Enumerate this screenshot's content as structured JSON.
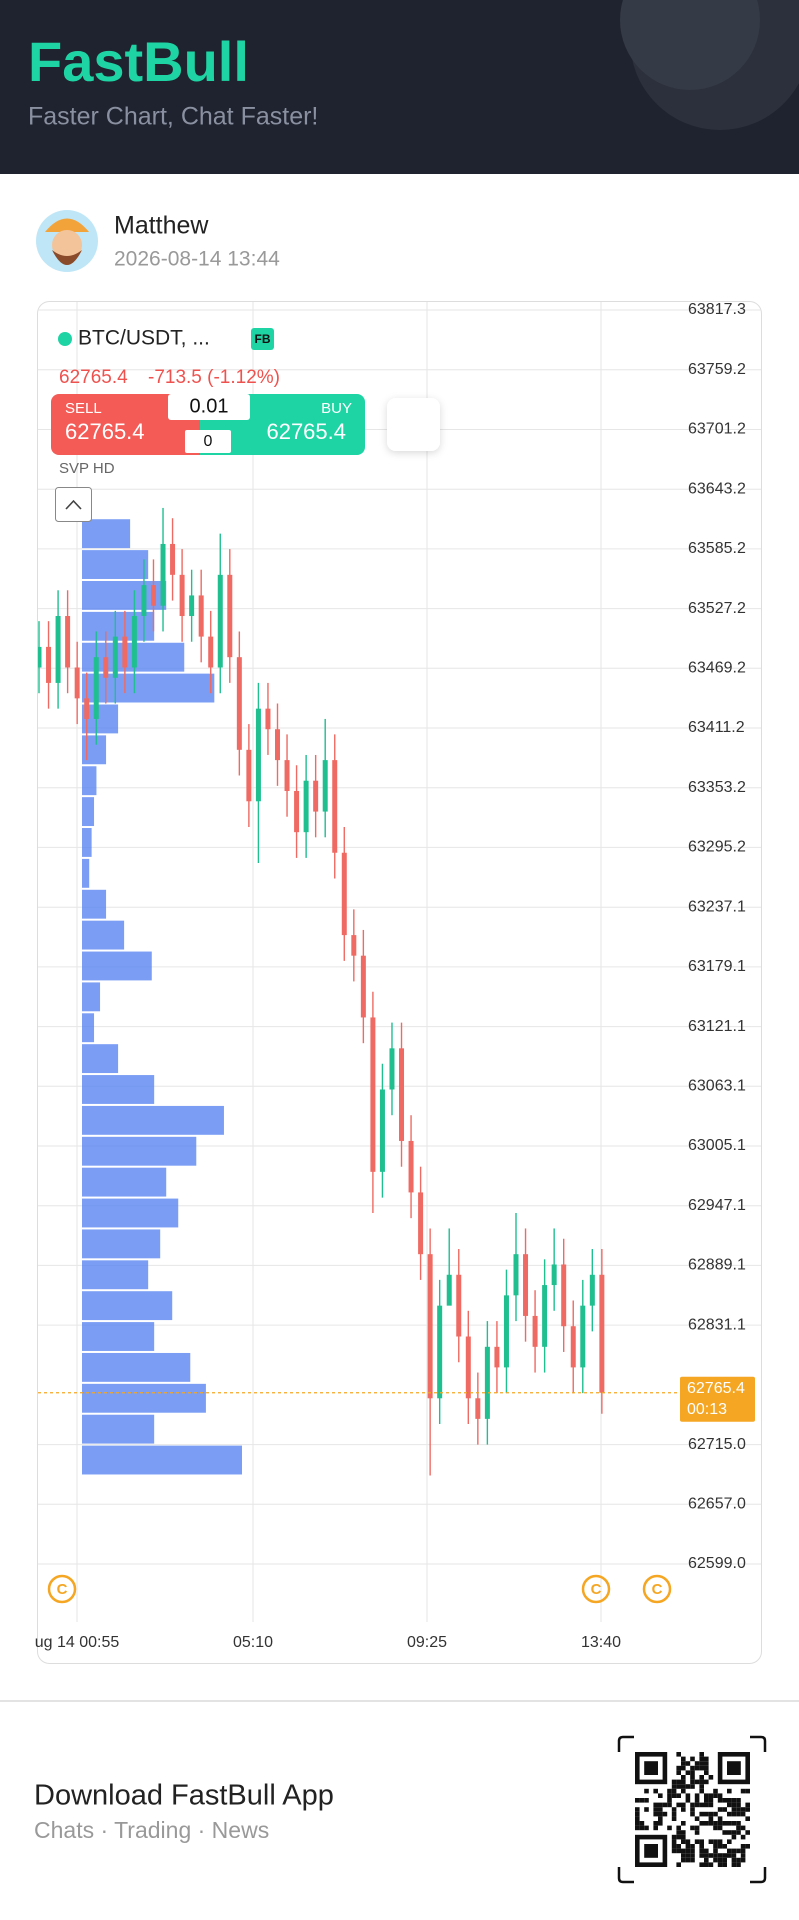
{
  "header": {
    "logo": "FastBull",
    "tagline": "Faster Chart, Chat Faster!"
  },
  "post": {
    "author": "Matthew",
    "timestamp": "2026-08-14 13:44"
  },
  "ticker": {
    "symbol": "BTC/USDT, ...",
    "badge": "FB",
    "price": "62765.4",
    "change": "-713.5 (-1.12%)",
    "study": "SVP HD"
  },
  "trade_panel": {
    "sell_label": "SELL",
    "sell_price": "62765.4",
    "buy_label": "BUY",
    "buy_price": "62765.4",
    "quantity": "0.01",
    "position": "0"
  },
  "chart_data": {
    "type": "candlestick",
    "x_labels": [
      "ug 14 00:55",
      "05:10",
      "09:25",
      "13:40"
    ],
    "open": [
      63470,
      63490,
      63455,
      63520,
      63470,
      63440,
      63420,
      63480,
      63460,
      63500,
      63470,
      63520,
      63550,
      63530,
      63590,
      63560,
      63520,
      63540,
      63500,
      63470,
      63560,
      63480,
      63390,
      63340,
      63430,
      63410,
      63380,
      63350,
      63310,
      63360,
      63330,
      63380,
      63290,
      63210,
      63190,
      63130,
      62980,
      63060,
      63100,
      63010,
      62960,
      62900,
      62760,
      62850,
      62880,
      62820,
      62760,
      62740,
      62810,
      62790,
      62860,
      62900,
      62840,
      62810,
      62870,
      62890,
      62830,
      62790,
      62850,
      62880
    ],
    "high": [
      63515,
      63515,
      63545,
      63545,
      63495,
      63465,
      63505,
      63505,
      63525,
      63525,
      63545,
      63575,
      63575,
      63625,
      63615,
      63585,
      63565,
      63565,
      63525,
      63600,
      63585,
      63505,
      63415,
      63455,
      63455,
      63435,
      63405,
      63375,
      63385,
      63385,
      63420,
      63405,
      63315,
      63235,
      63215,
      63155,
      63085,
      63125,
      63125,
      63035,
      62985,
      62925,
      62875,
      62925,
      62905,
      62845,
      62785,
      62835,
      62835,
      62885,
      62940,
      62925,
      62865,
      62895,
      62925,
      62915,
      62855,
      62875,
      62905,
      62905
    ],
    "low": [
      63445,
      63430,
      63430,
      63445,
      63415,
      63380,
      63395,
      63435,
      63435,
      63445,
      63445,
      63495,
      63505,
      63505,
      63535,
      63495,
      63495,
      63475,
      63445,
      63445,
      63455,
      63365,
      63315,
      63280,
      63385,
      63355,
      63325,
      63285,
      63285,
      63305,
      63305,
      63265,
      63185,
      63165,
      63105,
      62940,
      62955,
      63035,
      62985,
      62935,
      62875,
      62685,
      62735,
      62855,
      62795,
      62735,
      62715,
      62715,
      62765,
      62765,
      62835,
      62815,
      62785,
      62785,
      62845,
      62805,
      62765,
      62765,
      62825,
      62745
    ],
    "close": [
      63490,
      63455,
      63520,
      63470,
      63440,
      63420,
      63480,
      63460,
      63500,
      63470,
      63520,
      63550,
      63530,
      63590,
      63560,
      63520,
      63540,
      63500,
      63470,
      63560,
      63480,
      63390,
      63340,
      63430,
      63410,
      63380,
      63350,
      63310,
      63360,
      63330,
      63380,
      63290,
      63210,
      63190,
      63130,
      62980,
      63060,
      63100,
      63010,
      62960,
      62900,
      62760,
      62850,
      62880,
      62820,
      62760,
      62740,
      62810,
      62790,
      62860,
      62900,
      62840,
      62810,
      62870,
      62890,
      62830,
      62790,
      62850,
      62880,
      62765.4
    ],
    "up_color": "#1fbf90",
    "down_color": "#ef6a63",
    "ylim": [
      62599.0,
      63817.3
    ],
    "yticks": [
      63817.3,
      63759.2,
      63701.2,
      63643.2,
      63585.2,
      63527.2,
      63469.2,
      63411.2,
      63353.2,
      63295.2,
      63237.1,
      63179.1,
      63121.1,
      63063.1,
      63005.1,
      62947.1,
      62889.1,
      62831.1,
      {
        "value": 62715.0,
        "label": "62715.0"
      },
      {
        "value": 62657.0,
        "label": "62657.0"
      },
      {
        "value": 62599.0,
        "label": "62599.0"
      }
    ],
    "grid": true,
    "last_price": 62765.4,
    "countdown": "00:13",
    "last_price_color": "#f5a623",
    "volume_profile": {
      "color": "#4f7ef0",
      "prices": [
        63600,
        63570,
        63540,
        63510,
        63480,
        63450,
        63420,
        63390,
        63360,
        63330,
        63300,
        63270,
        63240,
        63210,
        63180,
        63150,
        63120,
        63090,
        63060,
        63030,
        63000,
        62970,
        62940,
        62910,
        62880,
        62850,
        62820,
        62790,
        62760,
        62730,
        62700
      ],
      "volumes": [
        40,
        55,
        70,
        60,
        85,
        110,
        30,
        20,
        12,
        10,
        8,
        6,
        20,
        35,
        58,
        15,
        10,
        30,
        60,
        118,
        95,
        70,
        80,
        65,
        55,
        75,
        60,
        90,
        103,
        60,
        133
      ]
    }
  },
  "footer": {
    "title": "Download FastBull App",
    "subtitle": "Chats · Trading · News"
  }
}
